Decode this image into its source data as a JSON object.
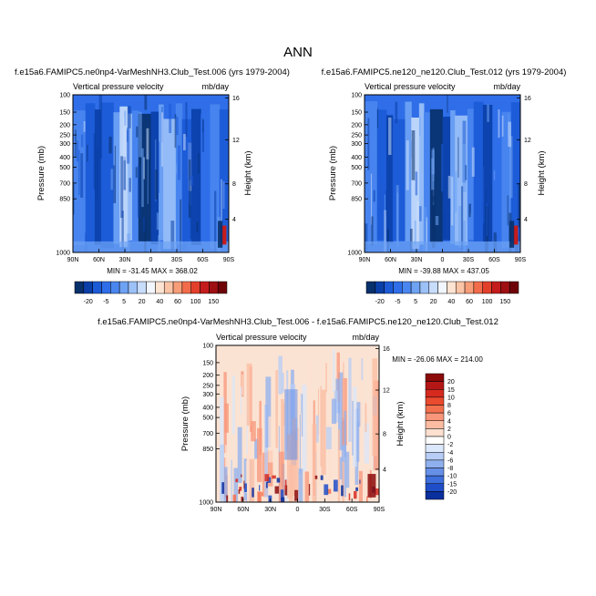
{
  "figure_title": "ANN",
  "chart_data": [
    {
      "type": "heatmap",
      "title": "f.e15a6.FAMIPC5.ne0np4-VarMeshNH3.Club_Test.006 (yrs 1979-2004)",
      "subtitle_left": "Vertical pressure velocity",
      "subtitle_right": "mb/day",
      "ylabel": "Pressure (mb)",
      "ylabel_right": "Height (km)",
      "x_ticks": [
        "90N",
        "60N",
        "30N",
        "0",
        "30S",
        "60S",
        "90S"
      ],
      "y_ticks": [
        "100",
        "150",
        "200",
        "250",
        "300",
        "400",
        "500",
        "700",
        "850",
        "1000"
      ],
      "y_right_ticks": [
        "16",
        "12",
        "8",
        "4"
      ],
      "stats": "MIN = -31.45  MAX = 368.02",
      "colorbar_labels": [
        "-20",
        "-5",
        "5",
        "20",
        "40",
        "60",
        "100",
        "150"
      ],
      "colorbar_colors": [
        "#08306b",
        "#0a3fa8",
        "#1c5ad6",
        "#2f6ee8",
        "#4a86ef",
        "#6ea2f3",
        "#9cc1f7",
        "#c8dcfb",
        "#f2f6fe",
        "#fde3d2",
        "#fbc4a6",
        "#f79d78",
        "#f26c4b",
        "#e3402b",
        "#c41c1c",
        "#9e0f12",
        "#6e0408"
      ]
    },
    {
      "type": "heatmap",
      "title": "f.e15a6.FAMIPC5.ne120_ne120.Club_Test.012 (yrs 1979-2004)",
      "subtitle_left": "Vertical pressure velocity",
      "subtitle_right": "mb/day",
      "ylabel": "Pressure (mb)",
      "ylabel_right": "Height (km)",
      "x_ticks": [
        "90N",
        "60N",
        "30N",
        "0",
        "30S",
        "60S",
        "90S"
      ],
      "y_ticks": [
        "100",
        "150",
        "200",
        "250",
        "300",
        "400",
        "500",
        "700",
        "850",
        "1000"
      ],
      "y_right_ticks": [
        "16",
        "12",
        "8",
        "4"
      ],
      "stats": "MIN = -39.88  MAX = 437.05",
      "colorbar_labels": [
        "-20",
        "-5",
        "5",
        "20",
        "40",
        "60",
        "100",
        "150"
      ],
      "colorbar_colors": [
        "#08306b",
        "#0a3fa8",
        "#1c5ad6",
        "#2f6ee8",
        "#4a86ef",
        "#6ea2f3",
        "#9cc1f7",
        "#c8dcfb",
        "#f2f6fe",
        "#fde3d2",
        "#fbc4a6",
        "#f79d78",
        "#f26c4b",
        "#e3402b",
        "#c41c1c",
        "#9e0f12",
        "#6e0408"
      ]
    },
    {
      "type": "heatmap",
      "title": "f.e15a6.FAMIPC5.ne0np4-VarMeshNH3.Club_Test.006 - f.e15a6.FAMIPC5.ne120_ne120.Club_Test.012",
      "subtitle_left": "Vertical pressure velocity",
      "subtitle_right": "mb/day",
      "ylabel": "Pressure (mb)",
      "ylabel_right": "Height (km)",
      "x_ticks": [
        "90N",
        "60N",
        "30N",
        "0",
        "30S",
        "60S",
        "90S"
      ],
      "y_ticks": [
        "100",
        "150",
        "200",
        "250",
        "300",
        "400",
        "500",
        "700",
        "850",
        "1000"
      ],
      "y_right_ticks": [
        "16",
        "12",
        "8",
        "4"
      ],
      "stats": "MIN = -26.06  MAX = 214.00",
      "colorbar_labels": [
        "20",
        "15",
        "10",
        "8",
        "6",
        "4",
        "2",
        "0",
        "-2",
        "-4",
        "-6",
        "-8",
        "-10",
        "-15",
        "-20"
      ],
      "colorbar_colors": [
        "#8b0a0a",
        "#b51616",
        "#d62a1f",
        "#ea4a2e",
        "#f3704e",
        "#f8967a",
        "#fbbca2",
        "#fde0cf",
        "#ffffff",
        "#dbe7fa",
        "#b7cdf5",
        "#8fb0ef",
        "#6690e8",
        "#3f6fdd",
        "#1f4ec8",
        "#0a2f9e"
      ]
    }
  ],
  "colors": {
    "base_blue": "#2b6ae6",
    "text": "#000000"
  }
}
